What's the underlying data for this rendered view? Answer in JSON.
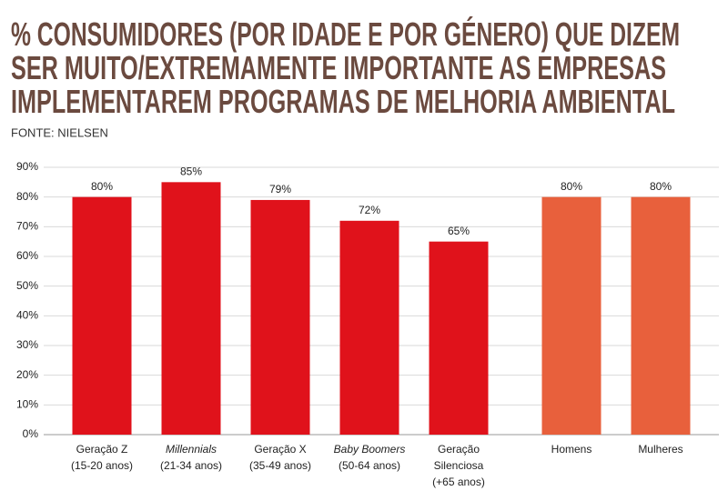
{
  "chart_data": {
    "type": "bar",
    "title": [
      "% CONSUMIDORES (POR IDADE E POR GÉNERO) QUE DIZEM",
      "SER MUITO/EXTREMAMENTE IMPORTANTE AS EMPRESAS",
      "IMPLEMENTAREM PROGRAMAS DE MELHORIA AMBIENTAL"
    ],
    "source": "FONTE: NIELSEN",
    "categories": [
      [
        "Geração Z",
        "(15-20 anos)"
      ],
      [
        "Millennials",
        "(21-34 anos)"
      ],
      [
        "Geração X",
        "(35-49 anos)"
      ],
      [
        "Baby Boomers",
        "(50-64 anos)"
      ],
      [
        "Geração",
        "Silenciosa",
        "(+65 anos)"
      ],
      [
        "Homens"
      ],
      [
        "Mulheres"
      ]
    ],
    "italic": [
      false,
      true,
      false,
      true,
      false,
      false,
      false
    ],
    "values": [
      80,
      85,
      79,
      72,
      65,
      80,
      80
    ],
    "value_labels": [
      "80%",
      "85%",
      "79%",
      "72%",
      "65%",
      "80%",
      "80%"
    ],
    "colors": [
      "#e0121b",
      "#e0121b",
      "#e0121b",
      "#e0121b",
      "#e0121b",
      "#e8603c",
      "#e8603c"
    ],
    "ylim": [
      0,
      90
    ],
    "yticks": [
      {
        "value": 0,
        "label": "0%"
      },
      {
        "value": 10,
        "label": "10%"
      },
      {
        "value": 20,
        "label": "20%"
      },
      {
        "value": 30,
        "label": "30%"
      },
      {
        "value": 40,
        "label": "40%"
      },
      {
        "value": 50,
        "label": "50%"
      },
      {
        "value": 60,
        "label": "60%"
      },
      {
        "value": 70,
        "label": "70%"
      },
      {
        "value": 80,
        "label": "80%"
      },
      {
        "value": 90,
        "label": "90%"
      }
    ],
    "grid": true
  }
}
